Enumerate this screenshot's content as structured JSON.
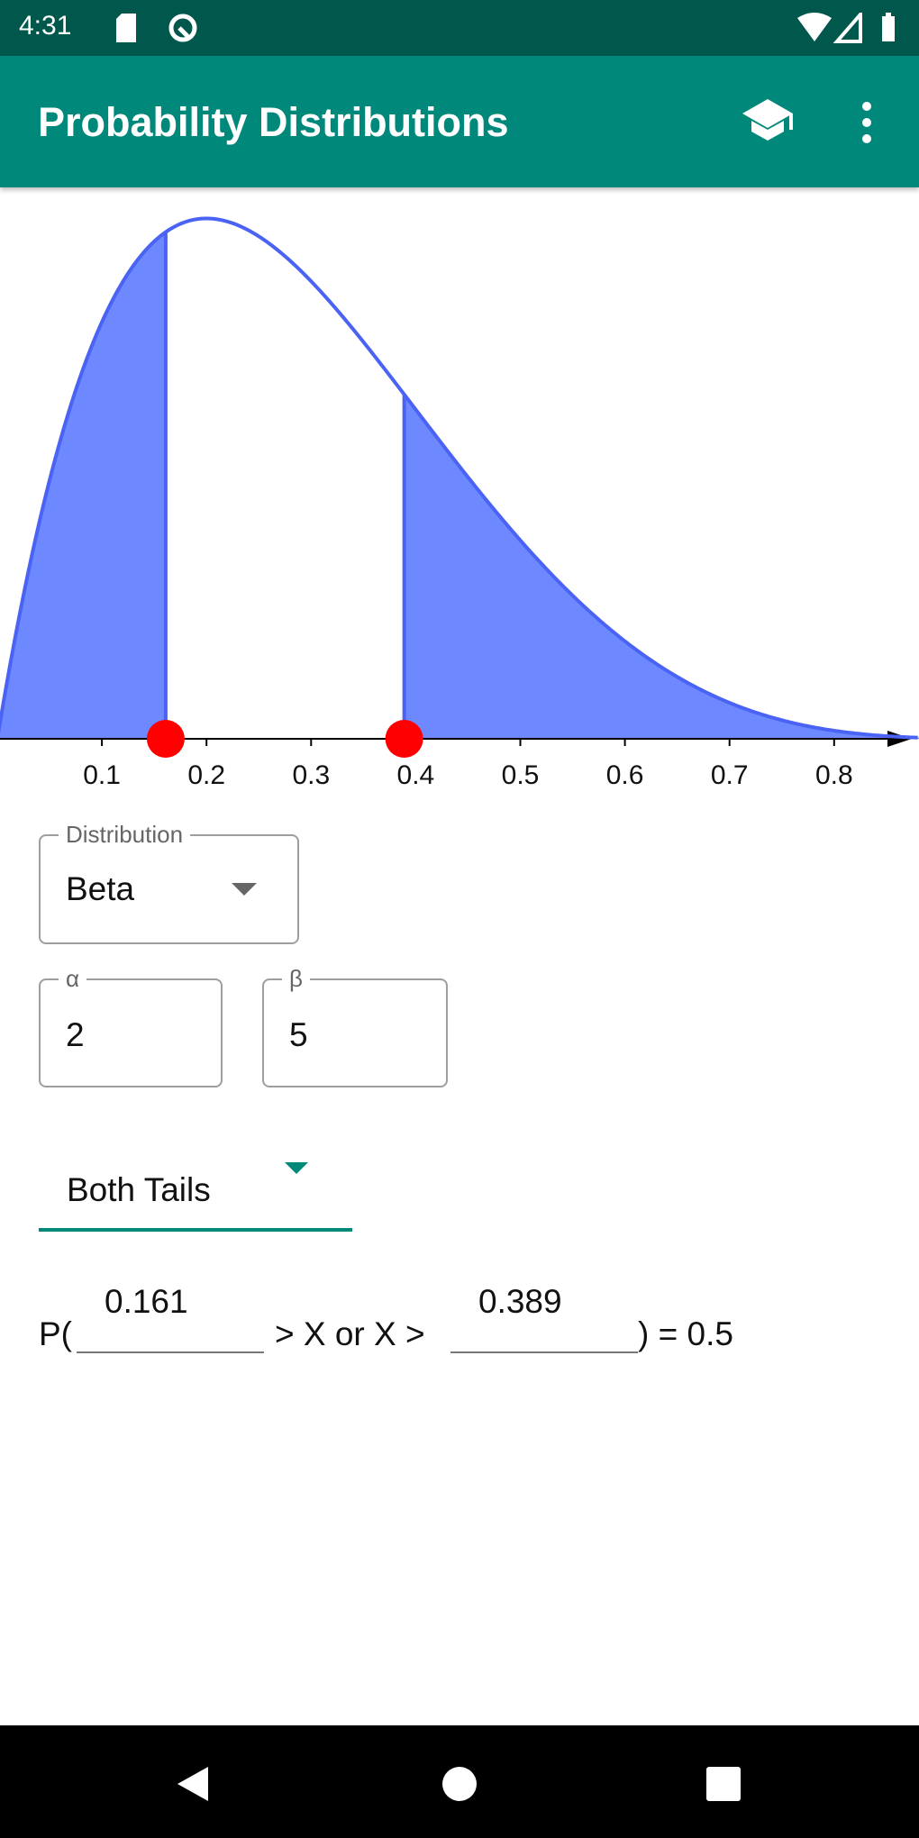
{
  "status_bar": {
    "time": "4:31",
    "icons": [
      "sd-card-icon",
      "vpn-icon",
      "wifi-icon",
      "signal-icon",
      "battery-icon"
    ]
  },
  "app_bar": {
    "title": "Probability Distributions",
    "actions": [
      "school-icon",
      "more-vert-icon"
    ]
  },
  "chart_data": {
    "type": "area",
    "distribution": "Beta",
    "params": {
      "alpha": 2,
      "beta": 5
    },
    "x_ticks": [
      "0.1",
      "0.2",
      "0.3",
      "0.4",
      "0.5",
      "0.6",
      "0.7",
      "0.8"
    ],
    "xlim": [
      0,
      0.88
    ],
    "shaded_regions": [
      [
        0,
        0.161
      ],
      [
        0.389,
        1
      ]
    ],
    "markers": [
      0.161,
      0.389
    ],
    "colors": {
      "fill": "#6e88ff",
      "line": "#4a63f5",
      "marker": "#ff0000"
    }
  },
  "distribution_select": {
    "label": "Distribution",
    "value": "Beta"
  },
  "params": {
    "alpha": {
      "label": "α",
      "value": "2"
    },
    "beta": {
      "label": "β",
      "value": "5"
    }
  },
  "tail_select": {
    "value": "Both Tails"
  },
  "probability": {
    "prefix": "P(",
    "lower": "0.161",
    "middle": "> X or X >",
    "upper": "0.389",
    "suffix": ") = 0.5"
  },
  "colors": {
    "primary": "#00897b",
    "primary_dark": "#00574b"
  }
}
